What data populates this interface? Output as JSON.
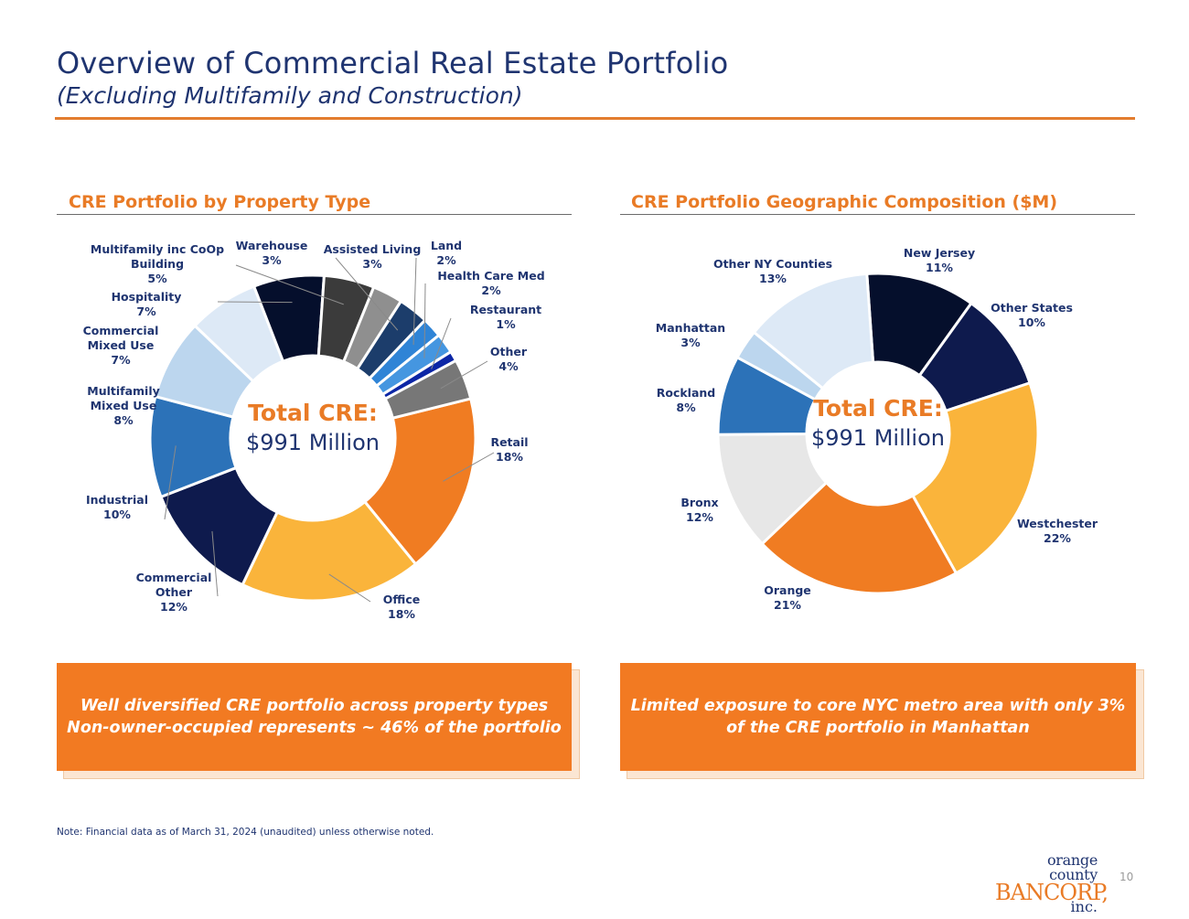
{
  "header": {
    "title": "Overview of Commercial Real Estate Portfolio",
    "subtitle": "(Excluding Multifamily and Construction)"
  },
  "chart_data": [
    {
      "type": "pie",
      "title": "CRE Portfolio by Property Type",
      "center_label": "Total CRE:",
      "center_value": "$991 Million",
      "slices": [
        {
          "name": "Retail",
          "label": [
            "Retail"
          ],
          "pct": "18%",
          "value": 18,
          "color": "#f07c22"
        },
        {
          "name": "Office",
          "label": [
            "Office"
          ],
          "pct": "18%",
          "value": 18,
          "color": "#fab43b"
        },
        {
          "name": "Commercial Other",
          "label": [
            "Commercial",
            "Other"
          ],
          "pct": "12%",
          "value": 12,
          "color": "#0e1a4d"
        },
        {
          "name": "Industrial",
          "label": [
            "Industrial"
          ],
          "pct": "10%",
          "value": 10,
          "color": "#2c72b8"
        },
        {
          "name": "Multifamily Mixed Use",
          "label": [
            "Multifamily",
            "Mixed Use"
          ],
          "pct": "8%",
          "value": 8,
          "color": "#bcd6ee"
        },
        {
          "name": "Commercial Mixed Use",
          "label": [
            "Commercial",
            "Mixed Use"
          ],
          "pct": "7%",
          "value": 7,
          "color": "#dde9f6"
        },
        {
          "name": "Hospitality",
          "label": [
            "Hospitality"
          ],
          "pct": "7%",
          "value": 7,
          "color": "#050f2c"
        },
        {
          "name": "Multifamily inc CoOp Building",
          "label": [
            "Multifamily inc CoOp",
            "Building"
          ],
          "pct": "5%",
          "value": 5,
          "color": "#3b3b3b"
        },
        {
          "name": "Warehouse",
          "label": [
            "Warehouse"
          ],
          "pct": "3%",
          "value": 3,
          "color": "#8f8f8f"
        },
        {
          "name": "Assisted Living",
          "label": [
            "Assisted Living"
          ],
          "pct": "3%",
          "value": 3,
          "color": "#1c3d6b"
        },
        {
          "name": "Land",
          "label": [
            "Land"
          ],
          "pct": "2%",
          "value": 2,
          "color": "#2f84d6"
        },
        {
          "name": "Health Care Med",
          "label": [
            "Health Care Med"
          ],
          "pct": "2%",
          "value": 2,
          "color": "#4596e0"
        },
        {
          "name": "Restaurant",
          "label": [
            "Restaurant"
          ],
          "pct": "1%",
          "value": 1,
          "color": "#0c26a6"
        },
        {
          "name": "Other",
          "label": [
            "Other"
          ],
          "pct": "4%",
          "value": 4,
          "color": "#777777"
        }
      ]
    },
    {
      "type": "pie",
      "title": "CRE Portfolio Geographic Composition ($M)",
      "center_label": "Total CRE:",
      "center_value": "$991 Million",
      "slices": [
        {
          "name": "New Jersey",
          "label": [
            "New Jersey"
          ],
          "pct": "11%",
          "value": 11,
          "color": "#050f2c"
        },
        {
          "name": "Other States",
          "label": [
            "Other States"
          ],
          "pct": "10%",
          "value": 10,
          "color": "#0e1a4d"
        },
        {
          "name": "Westchester",
          "label": [
            "Westchester"
          ],
          "pct": "22%",
          "value": 22,
          "color": "#fab43b"
        },
        {
          "name": "Orange",
          "label": [
            "Orange"
          ],
          "pct": "21%",
          "value": 21,
          "color": "#f07c22"
        },
        {
          "name": "Bronx",
          "label": [
            "Bronx"
          ],
          "pct": "12%",
          "value": 12,
          "color": "#e7e7e7"
        },
        {
          "name": "Rockland",
          "label": [
            "Rockland"
          ],
          "pct": "8%",
          "value": 8,
          "color": "#2c72b8"
        },
        {
          "name": "Manhattan",
          "label": [
            "Manhattan"
          ],
          "pct": "3%",
          "value": 3,
          "color": "#bcd6ee"
        },
        {
          "name": "Other NY Counties",
          "label": [
            "Other NY Counties"
          ],
          "pct": "13%",
          "value": 13,
          "color": "#dde9f6"
        }
      ]
    }
  ],
  "callouts": {
    "left": [
      "Well diversified CRE portfolio across property types",
      "Non-owner-occupied represents ~ 46% of the portfolio"
    ],
    "right": [
      "Limited exposure to core NYC metro area with only 3%",
      "of the CRE portfolio in Manhattan"
    ]
  },
  "footer": {
    "note": "Note: Financial data as of March 31, 2024 (unaudited) unless otherwise noted.",
    "logo_line1": "orange county",
    "logo_line2": "BANCORP,",
    "logo_line3": "inc.",
    "page_number": "10"
  }
}
